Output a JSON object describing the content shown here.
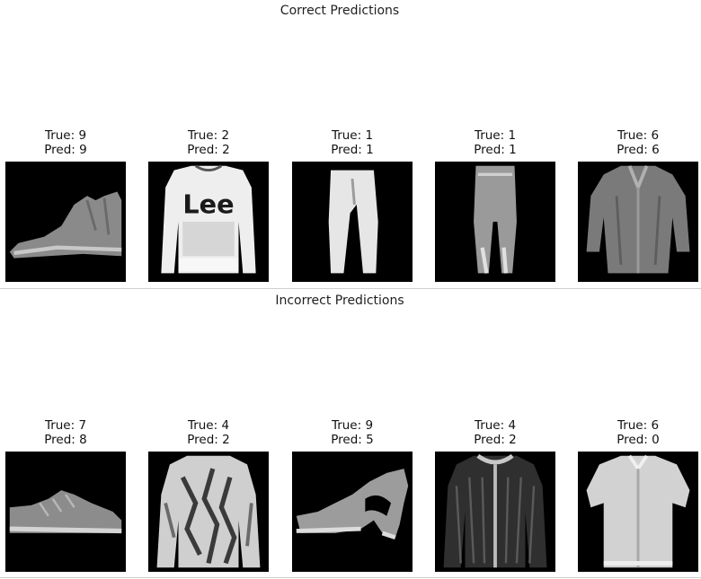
{
  "sections": [
    {
      "title": "Correct Predictions",
      "items": [
        {
          "true_label": "True: 9",
          "pred_label": "Pred: 9",
          "icon": "ankle-boot-icon"
        },
        {
          "true_label": "True: 2",
          "pred_label": "Pred: 2",
          "icon": "pullover-icon",
          "print_text": "Lee"
        },
        {
          "true_label": "True: 1",
          "pred_label": "Pred: 1",
          "icon": "trouser-icon"
        },
        {
          "true_label": "True: 1",
          "pred_label": "Pred: 1",
          "icon": "trouser-icon"
        },
        {
          "true_label": "True: 6",
          "pred_label": "Pred: 6",
          "icon": "shirt-icon"
        }
      ]
    },
    {
      "title": "Incorrect Predictions",
      "items": [
        {
          "true_label": "True: 7",
          "pred_label": "Pred: 8",
          "icon": "sneaker-icon"
        },
        {
          "true_label": "True: 4",
          "pred_label": "Pred: 2",
          "icon": "coat-icon"
        },
        {
          "true_label": "True: 9",
          "pred_label": "Pred: 5",
          "icon": "sandal-icon"
        },
        {
          "true_label": "True: 4",
          "pred_label": "Pred: 2",
          "icon": "cardigan-icon"
        },
        {
          "true_label": "True: 6",
          "pred_label": "Pred: 0",
          "icon": "tshirt-icon"
        }
      ]
    }
  ]
}
